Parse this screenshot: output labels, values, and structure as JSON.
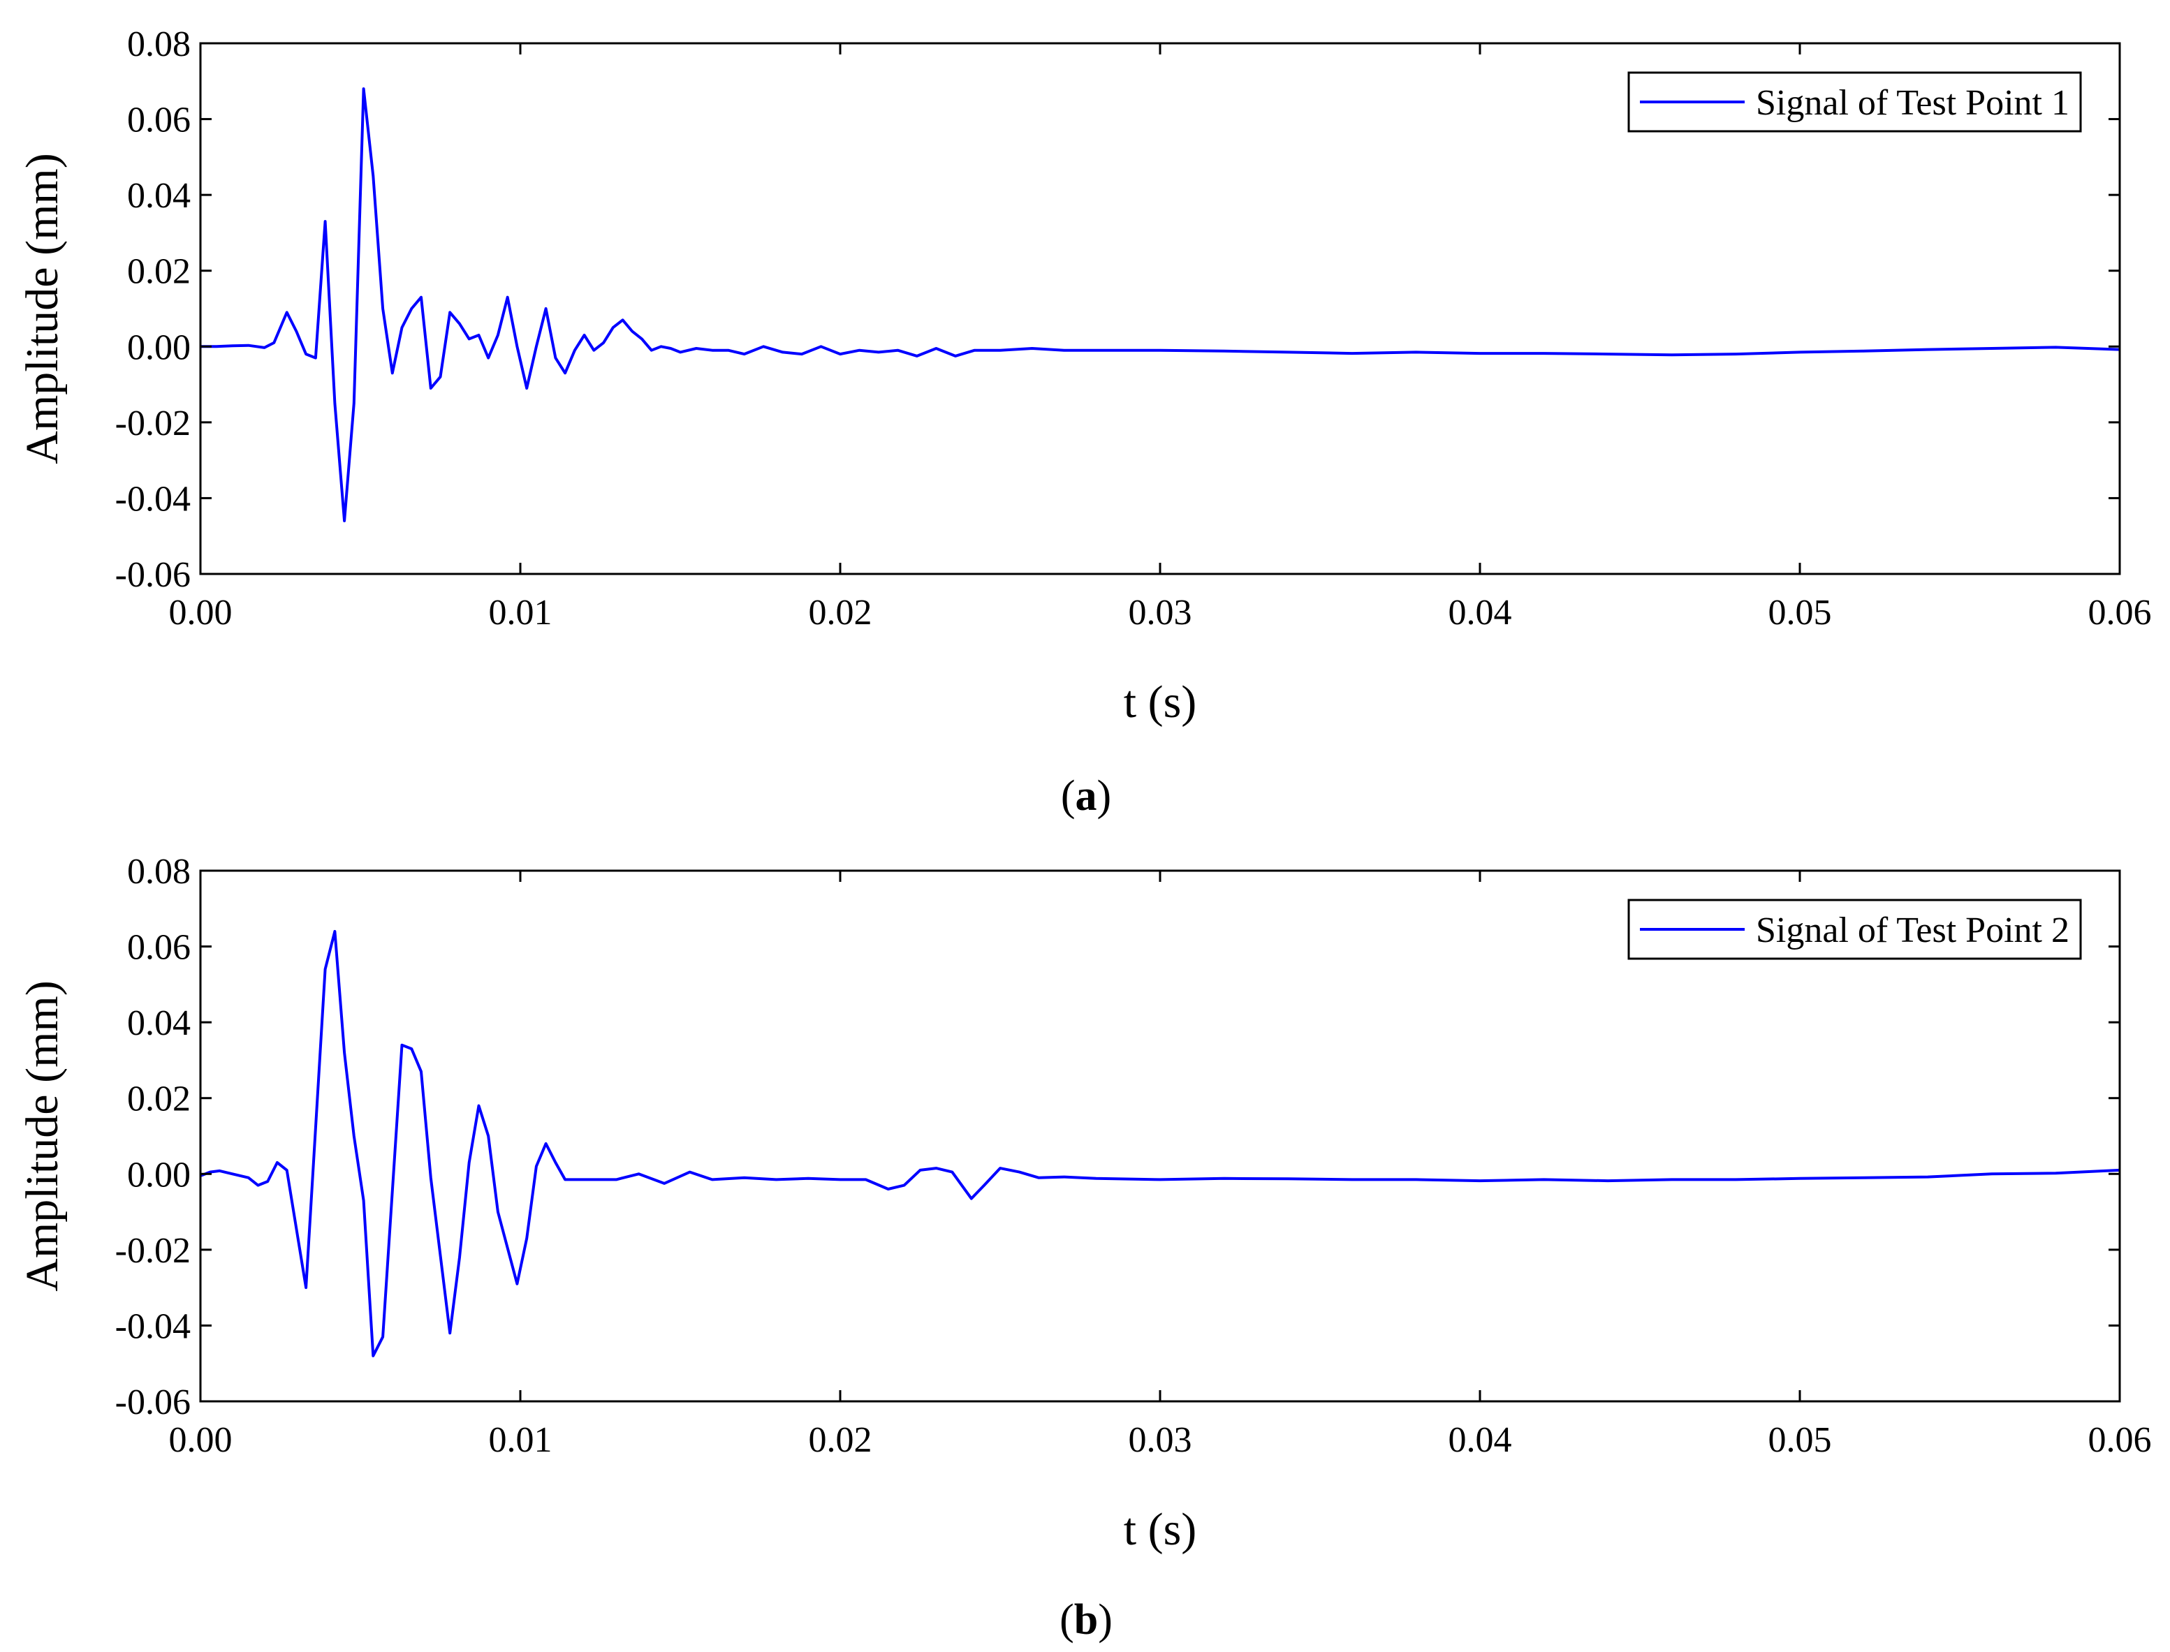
{
  "colors": {
    "line": "#0000ff",
    "axis": "#000000",
    "background": "#ffffff"
  },
  "chart_data": [
    {
      "type": "line",
      "panel_label": {
        "open": "(",
        "letter": "a",
        "close": ")"
      },
      "xlabel": "t (s)",
      "ylabel": "Amplitude (mm)",
      "xlim": [
        0.0,
        0.06
      ],
      "ylim": [
        -0.06,
        0.08
      ],
      "xticks": [
        "0.00",
        "0.01",
        "0.02",
        "0.03",
        "0.04",
        "0.05",
        "0.06"
      ],
      "yticks": [
        "-0.06",
        "-0.04",
        "-0.02",
        "0.00",
        "0.02",
        "0.04",
        "0.06",
        "0.08"
      ],
      "grid": false,
      "legend_position": "top-right",
      "series": [
        {
          "name": "Signal of Test Point 1",
          "color": "#0000ff",
          "x": [
            0.0,
            0.0005,
            0.001,
            0.0015,
            0.002,
            0.0023,
            0.0027,
            0.003,
            0.0033,
            0.0036,
            0.0039,
            0.0042,
            0.0045,
            0.0048,
            0.0051,
            0.0054,
            0.0057,
            0.006,
            0.0063,
            0.0066,
            0.0069,
            0.0072,
            0.0075,
            0.0078,
            0.0081,
            0.0084,
            0.0087,
            0.009,
            0.0093,
            0.0096,
            0.0099,
            0.0102,
            0.0105,
            0.0108,
            0.0111,
            0.0114,
            0.0117,
            0.012,
            0.0123,
            0.0126,
            0.0129,
            0.0132,
            0.0135,
            0.0138,
            0.0141,
            0.0144,
            0.0147,
            0.015,
            0.0155,
            0.016,
            0.0165,
            0.017,
            0.0176,
            0.0182,
            0.0188,
            0.0194,
            0.02,
            0.0206,
            0.0212,
            0.0218,
            0.0224,
            0.023,
            0.0236,
            0.0242,
            0.025,
            0.026,
            0.027,
            0.028,
            0.03,
            0.032,
            0.034,
            0.036,
            0.038,
            0.04,
            0.042,
            0.044,
            0.046,
            0.048,
            0.05,
            0.052,
            0.054,
            0.056,
            0.058,
            0.06
          ],
          "y": [
            0.0,
            0.0,
            0.0002,
            0.0003,
            -0.0003,
            0.001,
            0.009,
            0.004,
            -0.002,
            -0.003,
            0.033,
            -0.015,
            -0.046,
            -0.015,
            0.068,
            0.045,
            0.01,
            -0.007,
            0.005,
            0.01,
            0.013,
            -0.011,
            -0.008,
            0.009,
            0.006,
            0.002,
            0.003,
            -0.003,
            0.003,
            0.013,
            0.0,
            -0.011,
            0.0,
            0.01,
            -0.003,
            -0.007,
            -0.001,
            0.003,
            -0.001,
            0.001,
            0.005,
            0.007,
            0.004,
            0.002,
            -0.001,
            0.0,
            -0.0005,
            -0.0015,
            -0.0005,
            -0.001,
            -0.001,
            -0.002,
            0.0,
            -0.0015,
            -0.002,
            0.0,
            -0.002,
            -0.001,
            -0.0015,
            -0.001,
            -0.0025,
            -0.0005,
            -0.0025,
            -0.001,
            -0.001,
            -0.0005,
            -0.001,
            -0.001,
            -0.001,
            -0.0012,
            -0.0015,
            -0.0018,
            -0.0015,
            -0.0018,
            -0.0018,
            -0.002,
            -0.0022,
            -0.002,
            -0.0015,
            -0.0012,
            -0.0008,
            -0.0005,
            -0.0002,
            -0.0008
          ]
        }
      ]
    },
    {
      "type": "line",
      "panel_label": {
        "open": "(",
        "letter": "b",
        "close": ")"
      },
      "xlabel": "t (s)",
      "ylabel": "Amplitude (mm)",
      "xlim": [
        0.0,
        0.06
      ],
      "ylim": [
        -0.06,
        0.08
      ],
      "xticks": [
        "0.00",
        "0.01",
        "0.02",
        "0.03",
        "0.04",
        "0.05",
        "0.06"
      ],
      "yticks": [
        "-0.06",
        "-0.04",
        "-0.02",
        "0.00",
        "0.02",
        "0.04",
        "0.06",
        "0.08"
      ],
      "grid": false,
      "legend_position": "top-right",
      "series": [
        {
          "name": "Signal of Test Point 2",
          "color": "#0000ff",
          "x": [
            0.0,
            0.0003,
            0.0006,
            0.001,
            0.0015,
            0.0018,
            0.0021,
            0.0024,
            0.0027,
            0.0033,
            0.0039,
            0.0042,
            0.0045,
            0.0048,
            0.0051,
            0.0054,
            0.0057,
            0.0063,
            0.0066,
            0.0069,
            0.0072,
            0.0078,
            0.0081,
            0.0084,
            0.0087,
            0.009,
            0.0093,
            0.0099,
            0.0102,
            0.0105,
            0.0108,
            0.0111,
            0.0114,
            0.012,
            0.013,
            0.0137,
            0.0145,
            0.0153,
            0.016,
            0.017,
            0.018,
            0.019,
            0.02,
            0.0208,
            0.0215,
            0.022,
            0.0225,
            0.023,
            0.0235,
            0.0241,
            0.0245,
            0.025,
            0.0256,
            0.0262,
            0.027,
            0.028,
            0.03,
            0.032,
            0.034,
            0.036,
            0.038,
            0.04,
            0.042,
            0.044,
            0.046,
            0.048,
            0.05,
            0.052,
            0.054,
            0.056,
            0.058,
            0.06
          ],
          "y": [
            -0.0005,
            0.0005,
            0.0008,
            0.0,
            -0.001,
            -0.003,
            -0.002,
            0.003,
            0.001,
            -0.03,
            0.054,
            0.064,
            0.032,
            0.01,
            -0.007,
            -0.048,
            -0.043,
            0.034,
            0.033,
            0.027,
            -0.001,
            -0.042,
            -0.022,
            0.003,
            0.018,
            0.01,
            -0.01,
            -0.029,
            -0.017,
            0.002,
            0.008,
            0.003,
            -0.0015,
            -0.0015,
            -0.0015,
            0.0,
            -0.0025,
            0.0005,
            -0.0015,
            -0.001,
            -0.0015,
            -0.0012,
            -0.0015,
            -0.0015,
            -0.004,
            -0.003,
            0.001,
            0.0015,
            0.0005,
            -0.0065,
            -0.003,
            0.0015,
            0.0005,
            -0.001,
            -0.0008,
            -0.0012,
            -0.0015,
            -0.0012,
            -0.0013,
            -0.0015,
            -0.0015,
            -0.0018,
            -0.0015,
            -0.0018,
            -0.0015,
            -0.0015,
            -0.0012,
            -0.001,
            -0.0008,
            0.0,
            0.0002,
            0.001
          ]
        }
      ]
    }
  ]
}
